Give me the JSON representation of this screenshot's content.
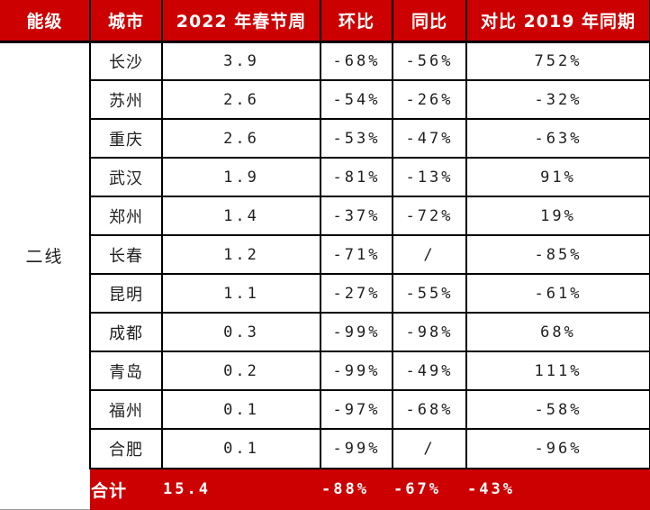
{
  "chart_data": {
    "type": "table",
    "tier_label": "二线",
    "columns": [
      "能级",
      "城市",
      "2022 年春节周",
      "环比",
      "同比",
      "对比 2019 年同期"
    ],
    "rows": [
      {
        "city": "长沙",
        "week2022": "3.9",
        "mom": "-68%",
        "yoy": "-56%",
        "vs_2019": "752%"
      },
      {
        "city": "苏州",
        "week2022": "2.6",
        "mom": "-54%",
        "yoy": "-26%",
        "vs_2019": "-32%"
      },
      {
        "city": "重庆",
        "week2022": "2.6",
        "mom": "-53%",
        "yoy": "-47%",
        "vs_2019": "-63%"
      },
      {
        "city": "武汉",
        "week2022": "1.9",
        "mom": "-81%",
        "yoy": "-13%",
        "vs_2019": "91%"
      },
      {
        "city": "郑州",
        "week2022": "1.4",
        "mom": "-37%",
        "yoy": "-72%",
        "vs_2019": "19%"
      },
      {
        "city": "长春",
        "week2022": "1.2",
        "mom": "-71%",
        "yoy": "/",
        "vs_2019": "-85%"
      },
      {
        "city": "昆明",
        "week2022": "1.1",
        "mom": "-27%",
        "yoy": "-55%",
        "vs_2019": "-61%"
      },
      {
        "city": "成都",
        "week2022": "0.3",
        "mom": "-99%",
        "yoy": "-98%",
        "vs_2019": "68%"
      },
      {
        "city": "青岛",
        "week2022": "0.2",
        "mom": "-99%",
        "yoy": "-49%",
        "vs_2019": "111%"
      },
      {
        "city": "福州",
        "week2022": "0.1",
        "mom": "-97%",
        "yoy": "-68%",
        "vs_2019": "-58%"
      },
      {
        "city": "合肥",
        "week2022": "0.1",
        "mom": "-99%",
        "yoy": "/",
        "vs_2019": "-96%"
      }
    ],
    "total": {
      "label": "合计",
      "week2022": "15.4",
      "mom": "-88%",
      "yoy": "-67%",
      "vs_2019": "-43%"
    }
  },
  "colors": {
    "header_bg": "#CC0000",
    "total_bg": "#CC0000",
    "header_text": "#FFFFFF",
    "body_text": "#1F1F1F",
    "border": "#000000"
  }
}
